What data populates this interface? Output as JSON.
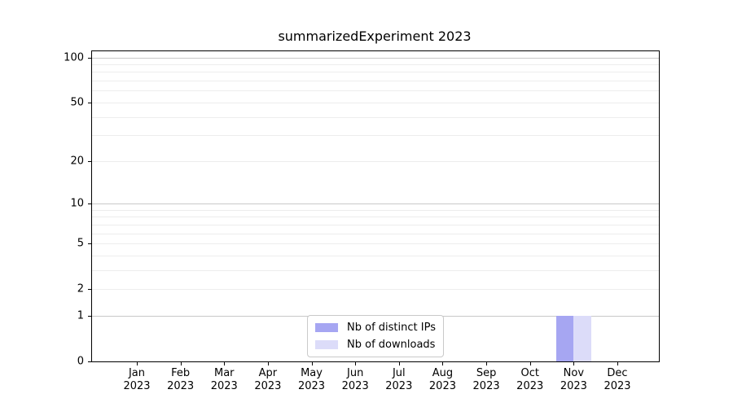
{
  "window": {
    "background": "#ffffff"
  },
  "chart_data": {
    "type": "bar",
    "title": "summarizedExperiment 2023",
    "xlabel": "",
    "ylabel": "",
    "categories": [
      "Jan",
      "Feb",
      "Mar",
      "Apr",
      "May",
      "Jun",
      "Jul",
      "Aug",
      "Sep",
      "Oct",
      "Nov",
      "Dec"
    ],
    "category_sublabel": "2023",
    "series": [
      {
        "name": "Nb of distinct IPs",
        "color": "#a6a6f2",
        "values": [
          0,
          0,
          0,
          0,
          0,
          0,
          0,
          0,
          0,
          0,
          1,
          0
        ]
      },
      {
        "name": "Nb of downloads",
        "color": "#dcdcf9",
        "values": [
          0,
          0,
          0,
          0,
          0,
          0,
          0,
          0,
          0,
          0,
          1,
          0
        ]
      }
    ],
    "y_axis": {
      "scale": "log1p",
      "tick_labels": [
        0,
        1,
        2,
        5,
        10,
        20,
        50,
        100
      ],
      "min": 0,
      "max": 110
    },
    "grid": {
      "major_lines": [
        1,
        10,
        100
      ],
      "minor_lines": [
        2,
        3,
        4,
        5,
        6,
        7,
        8,
        9,
        20,
        30,
        40,
        50,
        60,
        70,
        80,
        90
      ],
      "major_color": "#c8c8c8",
      "minor_color": "#ededed"
    },
    "legend": {
      "position": "lower center"
    }
  }
}
